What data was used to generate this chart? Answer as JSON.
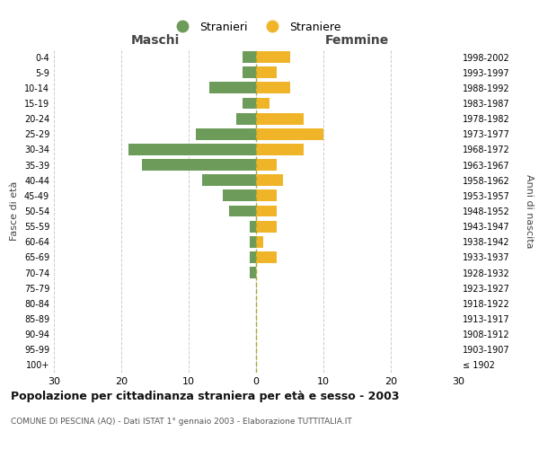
{
  "age_groups": [
    "100+",
    "95-99",
    "90-94",
    "85-89",
    "80-84",
    "75-79",
    "70-74",
    "65-69",
    "60-64",
    "55-59",
    "50-54",
    "45-49",
    "40-44",
    "35-39",
    "30-34",
    "25-29",
    "20-24",
    "15-19",
    "10-14",
    "5-9",
    "0-4"
  ],
  "birth_years": [
    "≤ 1902",
    "1903-1907",
    "1908-1912",
    "1913-1917",
    "1918-1922",
    "1923-1927",
    "1928-1932",
    "1933-1937",
    "1938-1942",
    "1943-1947",
    "1948-1952",
    "1953-1957",
    "1958-1962",
    "1963-1967",
    "1968-1972",
    "1973-1977",
    "1978-1982",
    "1983-1987",
    "1988-1992",
    "1993-1997",
    "1998-2002"
  ],
  "males": [
    0,
    0,
    0,
    0,
    0,
    0,
    1,
    1,
    1,
    1,
    4,
    5,
    8,
    17,
    19,
    9,
    3,
    2,
    7,
    2,
    2
  ],
  "females": [
    0,
    0,
    0,
    0,
    0,
    0,
    0,
    3,
    1,
    3,
    3,
    3,
    4,
    3,
    7,
    10,
    7,
    2,
    5,
    3,
    5
  ],
  "male_color": "#6d9b5a",
  "female_color": "#f0b429",
  "dashed_line_color": "#aaa830",
  "grid_color": "#cccccc",
  "background_color": "#ffffff",
  "title": "Popolazione per cittadinanza straniera per età e sesso - 2003",
  "subtitle": "COMUNE DI PESCINA (AQ) - Dati ISTAT 1° gennaio 2003 - Elaborazione TUTTITALIA.IT",
  "xlabel_left": "Maschi",
  "xlabel_right": "Femmine",
  "ylabel_left": "Fasce di età",
  "ylabel_right": "Anni di nascita",
  "xlim": 30,
  "legend_stranieri": "Stranieri",
  "legend_straniere": "Straniere"
}
